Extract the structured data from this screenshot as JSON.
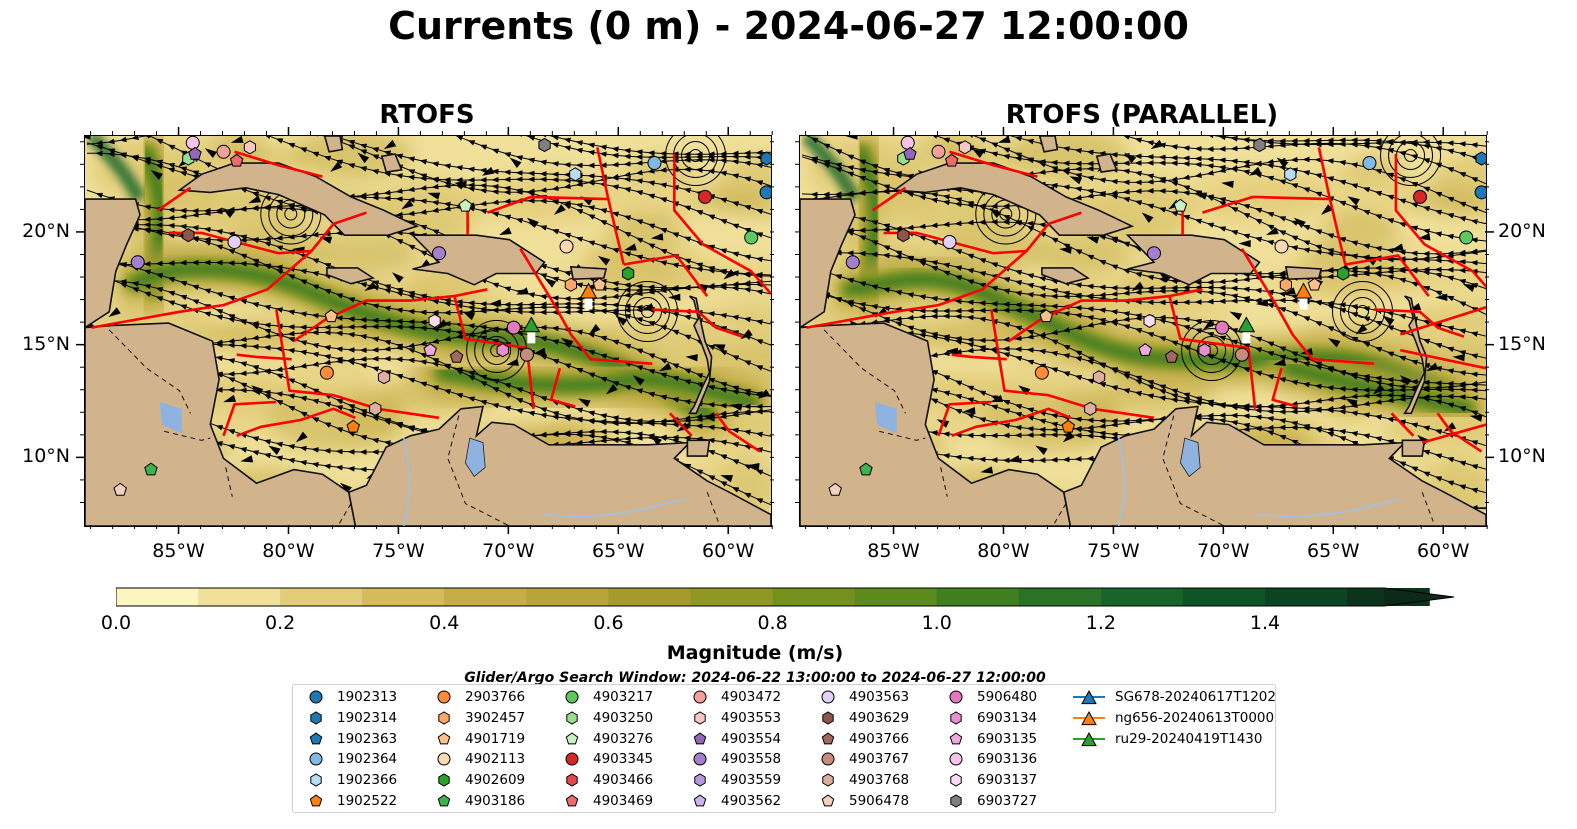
{
  "title": "Currents (0 m) - 2024-06-27 12:00:00",
  "panels": [
    {
      "title": "RTOFS"
    },
    {
      "title": "RTOFS (PARALLEL)"
    }
  ],
  "axes": {
    "lon_ticks": [
      "85°W",
      "80°W",
      "75°W",
      "70°W",
      "65°W",
      "60°W"
    ],
    "lat_ticks": [
      "20°N",
      "15°N",
      "10°N"
    ]
  },
  "colorbar": {
    "label": "Magnitude (m/s)",
    "ticks": [
      "0.0",
      "0.2",
      "0.4",
      "0.6",
      "0.8",
      "1.0",
      "1.2",
      "1.4"
    ],
    "colors": [
      "#fdf5c0",
      "#f0e09a",
      "#e2cc78",
      "#d4bb5c",
      "#c5ad48",
      "#b7a43a",
      "#a69a2e",
      "#8f9824",
      "#74911e",
      "#5b8a1d",
      "#3f7f20",
      "#2a7326",
      "#17652a",
      "#0f5426",
      "#0c4421",
      "#0b341b",
      "#0d2a18"
    ]
  },
  "search_window": "Glider/Argo Search Window: 2024-06-22 13:00:00 to 2024-06-27 12:00:00",
  "legend": [
    {
      "label": "1902313",
      "marker": "circle",
      "color": "#1f77b4"
    },
    {
      "label": "1902314",
      "marker": "hexagon",
      "color": "#1f77b4"
    },
    {
      "label": "1902363",
      "marker": "pentagon",
      "color": "#1f77b4"
    },
    {
      "label": "1902364",
      "marker": "circle",
      "color": "#7fb9e6"
    },
    {
      "label": "1902366",
      "marker": "hexagon",
      "color": "#b7dcf5"
    },
    {
      "label": "1902522",
      "marker": "pentagon",
      "color": "#ff7f0e"
    },
    {
      "label": "2903766",
      "marker": "circle",
      "color": "#ff8c3a"
    },
    {
      "label": "3902457",
      "marker": "hexagon",
      "color": "#ffa766"
    },
    {
      "label": "4901719",
      "marker": "pentagon",
      "color": "#ffc08a"
    },
    {
      "label": "4902113",
      "marker": "circle",
      "color": "#ffd9b0"
    },
    {
      "label": "4902609",
      "marker": "hexagon",
      "color": "#2ca02c"
    },
    {
      "label": "4903186",
      "marker": "pentagon",
      "color": "#3cb44b"
    },
    {
      "label": "4903217",
      "marker": "circle",
      "color": "#5fc95f"
    },
    {
      "label": "4903250",
      "marker": "hexagon",
      "color": "#98df8a"
    },
    {
      "label": "4903276",
      "marker": "pentagon",
      "color": "#c9f0bf"
    },
    {
      "label": "4903345",
      "marker": "circle",
      "color": "#d62728"
    },
    {
      "label": "4903466",
      "marker": "hexagon",
      "color": "#e04a4a"
    },
    {
      "label": "4903469",
      "marker": "pentagon",
      "color": "#ee6b6b"
    },
    {
      "label": "4903472",
      "marker": "circle",
      "color": "#f4a09a"
    },
    {
      "label": "4903553",
      "marker": "hexagon",
      "color": "#fbc7c2"
    },
    {
      "label": "4903554",
      "marker": "pentagon",
      "color": "#9467bd"
    },
    {
      "label": "4903558",
      "marker": "circle",
      "color": "#a47fd0"
    },
    {
      "label": "4903559",
      "marker": "hexagon",
      "color": "#b898dd"
    },
    {
      "label": "4903562",
      "marker": "pentagon",
      "color": "#cdb3ea"
    },
    {
      "label": "4903563",
      "marker": "circle",
      "color": "#e2d1f5"
    },
    {
      "label": "4903629",
      "marker": "hexagon",
      "color": "#8c564b"
    },
    {
      "label": "4903766",
      "marker": "pentagon",
      "color": "#a0695c"
    },
    {
      "label": "4903767",
      "marker": "circle",
      "color": "#c48d7c"
    },
    {
      "label": "4903768",
      "marker": "hexagon",
      "color": "#dcaf9e"
    },
    {
      "label": "5906478",
      "marker": "pentagon",
      "color": "#f3d1bf"
    },
    {
      "label": "5906480",
      "marker": "circle",
      "color": "#e377c2"
    },
    {
      "label": "6903134",
      "marker": "hexagon",
      "color": "#e98fd0"
    },
    {
      "label": "6903135",
      "marker": "pentagon",
      "color": "#f0a9dd"
    },
    {
      "label": "6903136",
      "marker": "circle",
      "color": "#f6c4e8"
    },
    {
      "label": "6903137",
      "marker": "hexagon",
      "color": "#fbdcf3"
    },
    {
      "label": "6903727",
      "marker": "hexagon",
      "color": "#7f7f7f"
    },
    {
      "label": "SG678-20240617T1202",
      "marker": "triangle",
      "color": "#1f77b4"
    },
    {
      "label": "ng656-20240613T0000",
      "marker": "triangle",
      "color": "#ff7f0e"
    },
    {
      "label": "ru29-20240419T1430",
      "marker": "triangle",
      "color": "#2ca02c"
    }
  ],
  "map_colors": {
    "land": "#d2b48c",
    "boundary": "#ff0000",
    "lake": "#8fb3e0",
    "river": "#9ec1e8",
    "streamline": "#000000"
  }
}
